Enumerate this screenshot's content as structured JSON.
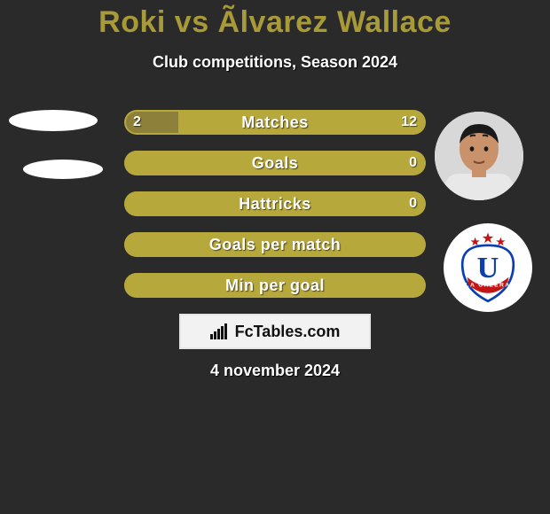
{
  "title_color": "#a89a36",
  "title": "Roki vs Ãlvarez Wallace",
  "subtitle": "Club competitions, Season 2024",
  "bar_track_bg": "#2a2a2a",
  "seg_left_color": "#8d803b",
  "seg_right_color": "#b7a83c",
  "outline_color": "#b7a83c",
  "bar_label_color": "#ffffff",
  "bars": [
    {
      "label": "Matches",
      "left_val": "2",
      "right_val": "12",
      "left_pct": 18,
      "right_pct": 82,
      "show_left": true,
      "show_right": true
    },
    {
      "label": "Goals",
      "left_val": "",
      "right_val": "0",
      "left_pct": 0,
      "right_pct": 100,
      "show_left": false,
      "show_right": true
    },
    {
      "label": "Hattricks",
      "left_val": "",
      "right_val": "0",
      "left_pct": 0,
      "right_pct": 100,
      "show_left": false,
      "show_right": true
    },
    {
      "label": "Goals per match",
      "left_val": "",
      "right_val": "",
      "left_pct": 0,
      "right_pct": 100,
      "show_left": false,
      "show_right": false
    },
    {
      "label": "Min per goal",
      "left_val": "",
      "right_val": "",
      "left_pct": 0,
      "right_pct": 100,
      "show_left": false,
      "show_right": false
    }
  ],
  "watermark_text": "FcTables.com",
  "date_text": "4 november 2024",
  "player_avatar": {
    "skin": "#c9926b",
    "hair": "#1a1a1a",
    "shirt": "#e8e8e8"
  },
  "club_badge": {
    "letter": "U",
    "letter_color": "#0a3fb0",
    "arc_text": "LA CALERA",
    "arc_bg": "#c21515",
    "star_color": "#c21515",
    "outline_color": "#0a3fb0"
  },
  "left_placeholder_color": "#ffffff"
}
